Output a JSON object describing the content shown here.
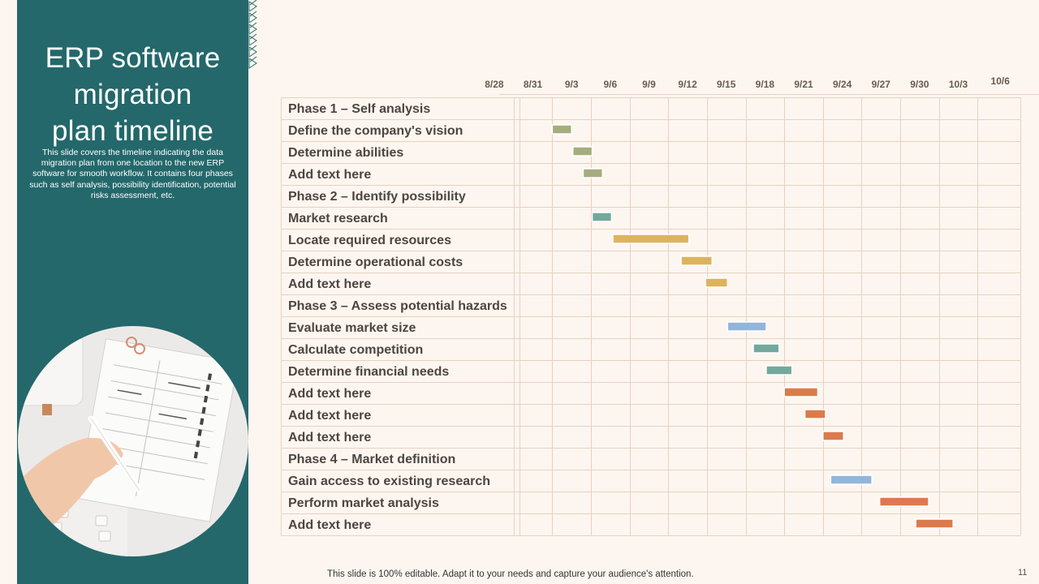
{
  "slide": {
    "title": "ERP software\nmigration\nplan timeline",
    "description": "This slide covers the timeline indicating the data migration plan from one location to the new ERP software for smooth workflow. It contains four phases such as self analysis, possibility identification, potential risks assessment, etc.",
    "footer_note": "This slide is 100% editable. Adapt it to your needs and capture your audience's attention.",
    "page_number": "11"
  },
  "colors": {
    "sidebar": "#24686b",
    "background": "#fdf6f0",
    "grid": "#e6d2c0",
    "olive": "#a6ad7d",
    "teal": "#73a89c",
    "gold": "#ddb45c",
    "blue": "#92b6da",
    "orange": "#dc7a4c"
  },
  "chart_data": {
    "type": "gantt",
    "title": "ERP software migration plan timeline",
    "x_unit": "days since 8/27",
    "xlim": [
      0,
      40
    ],
    "ticks": [
      {
        "label": "8/28",
        "day": 1
      },
      {
        "label": "8/31",
        "day": 4
      },
      {
        "label": "9/3",
        "day": 7
      },
      {
        "label": "9/6",
        "day": 10
      },
      {
        "label": "9/9",
        "day": 13
      },
      {
        "label": "9/12",
        "day": 16
      },
      {
        "label": "9/15",
        "day": 19
      },
      {
        "label": "9/18",
        "day": 22
      },
      {
        "label": "9/21",
        "day": 25
      },
      {
        "label": "9/24",
        "day": 28
      },
      {
        "label": "9/27",
        "day": 31
      },
      {
        "label": "9/30",
        "day": 34
      },
      {
        "label": "10/3",
        "day": 37
      },
      {
        "label": "10/6",
        "day": 40
      }
    ],
    "tasks": [
      {
        "label": "Phase 1 – Self analysis",
        "phase": true
      },
      {
        "label": "Define the company's vision",
        "start": 5.5,
        "end": 7.0,
        "color": "olive"
      },
      {
        "label": "Determine abilities",
        "start": 7.1,
        "end": 8.6,
        "color": "olive"
      },
      {
        "label": "Add text here",
        "start": 7.9,
        "end": 9.4,
        "color": "olive"
      },
      {
        "label": "Phase 2 – Identify possibility",
        "phase": true
      },
      {
        "label": "Market research",
        "start": 8.6,
        "end": 10.1,
        "color": "teal"
      },
      {
        "label": "Locate required resources",
        "start": 10.2,
        "end": 16.1,
        "color": "gold"
      },
      {
        "label": "Determine operational costs",
        "start": 15.5,
        "end": 17.9,
        "color": "gold"
      },
      {
        "label": "Add text here",
        "start": 17.4,
        "end": 19.1,
        "color": "gold"
      },
      {
        "label": "Phase 3 – Assess potential hazards",
        "phase": true
      },
      {
        "label": "Evaluate market size",
        "start": 19.1,
        "end": 22.1,
        "color": "blue"
      },
      {
        "label": "Calculate competition",
        "start": 21.1,
        "end": 23.1,
        "color": "teal"
      },
      {
        "label": "Determine financial needs",
        "start": 22.1,
        "end": 24.1,
        "color": "teal"
      },
      {
        "label": "Add text here",
        "start": 23.5,
        "end": 26.1,
        "color": "orange"
      },
      {
        "label": "Add text here",
        "start": 25.1,
        "end": 26.7,
        "color": "orange"
      },
      {
        "label": "Add text here",
        "start": 26.5,
        "end": 28.1,
        "color": "orange"
      },
      {
        "label": "Phase 4 – Market definition",
        "phase": true
      },
      {
        "label": "Gain access to existing research",
        "start": 27.1,
        "end": 30.3,
        "color": "blue"
      },
      {
        "label": "Perform market analysis",
        "start": 30.9,
        "end": 34.7,
        "color": "orange"
      },
      {
        "label": "Add text here",
        "start": 33.7,
        "end": 36.6,
        "color": "orange"
      }
    ]
  }
}
